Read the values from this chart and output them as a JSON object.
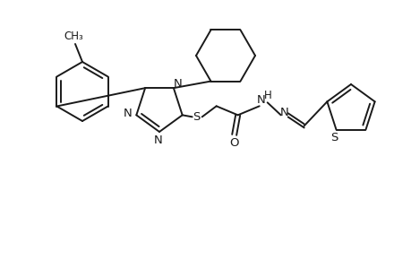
{
  "bg_color": "#ffffff",
  "line_color": "#1a1a1a",
  "line_width": 1.4,
  "font_size": 9.5,
  "figsize": [
    4.6,
    3.0
  ],
  "dpi": 100,
  "xlim": [
    0,
    460
  ],
  "ylim": [
    0,
    300
  ]
}
